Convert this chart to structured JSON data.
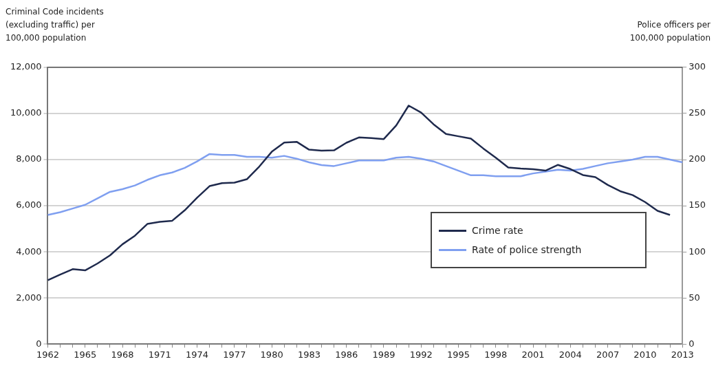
{
  "chart_data": {
    "type": "line",
    "ylabel": "Criminal Code incidents (excluding traffic) per 100,000 population",
    "y2label": "Police officers per 100,000 population",
    "categories": [
      "1962",
      null,
      null,
      "1965",
      null,
      null,
      "1968",
      null,
      null,
      "1971",
      null,
      null,
      "1974",
      null,
      null,
      "1977",
      null,
      null,
      "1980",
      null,
      null,
      "1983",
      null,
      null,
      "1986",
      null,
      null,
      "1989",
      null,
      null,
      "1992",
      null,
      null,
      "1995",
      null,
      null,
      "1998",
      null,
      null,
      "2001",
      null,
      null,
      "2004",
      null,
      null,
      "2007",
      null,
      null,
      "2010",
      null,
      null,
      "2013"
    ],
    "series": [
      {
        "name": "Crime rate",
        "color": "#1f2a4d",
        "values": [
          2770,
          3020,
          3250,
          3200,
          3500,
          3850,
          4330,
          4700,
          5210,
          5300,
          5350,
          5800,
          6350,
          6850,
          6980,
          7000,
          7150,
          7700,
          8340,
          8740,
          8770,
          8430,
          8390,
          8400,
          8730,
          8960,
          8930,
          8890,
          9480,
          10340,
          10040,
          9530,
          9110,
          9010,
          8910,
          8480,
          8080,
          7660,
          7610,
          7580,
          7520,
          7770,
          7590,
          7330,
          7240,
          6900,
          6630,
          6460,
          6160,
          5780,
          5600,
          null
        ]
      },
      {
        "name": "Rate of police strength",
        "color": "#7f9ff0",
        "axis": "y2",
        "values": [
          140,
          143,
          147,
          151,
          158,
          165,
          168,
          172,
          178,
          183,
          186,
          191,
          198,
          206,
          205,
          205,
          203,
          203,
          202,
          204,
          201,
          197,
          194,
          193,
          196,
          199,
          199,
          199,
          202,
          203,
          201,
          198,
          193,
          188,
          183,
          183,
          182,
          182,
          182,
          185,
          187,
          189,
          188,
          190,
          193,
          196,
          198,
          200,
          203,
          203,
          200,
          197
        ]
      }
    ],
    "ylim": [
      0,
      12000
    ],
    "yticks": [
      0,
      {
        "value": 2000,
        "label": "2,000"
      },
      {
        "value": 4000,
        "label": "4,000"
      },
      {
        "value": 6000,
        "label": "6,000"
      },
      {
        "value": 8000,
        "label": "8,000"
      },
      {
        "value": 10000,
        "label": "10,000"
      },
      {
        "value": 12000,
        "label": "12,000"
      }
    ],
    "y2lim": [
      0,
      300
    ],
    "y2ticks": [
      0,
      50,
      100,
      150,
      200,
      250,
      300
    ],
    "grid": "y",
    "legend": "bottom right",
    "line_style": "solid",
    "marker": "none"
  }
}
